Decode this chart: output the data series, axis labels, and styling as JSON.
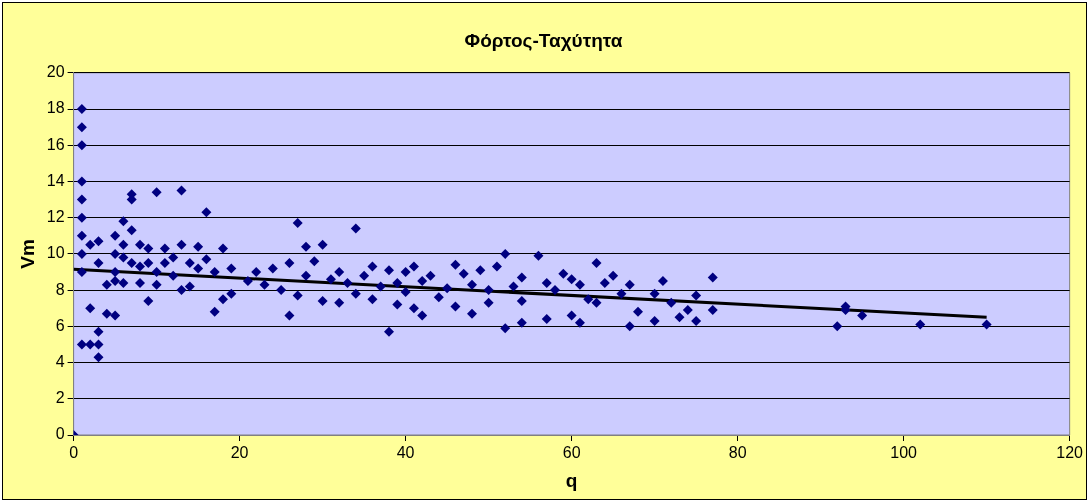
{
  "chart_data": {
    "type": "scatter",
    "title": "Φόρτος-Ταχύτητα",
    "xlabel": "q",
    "ylabel": "Vm",
    "xlim": [
      0,
      120
    ],
    "xticks": [
      0,
      20,
      40,
      60,
      80,
      100,
      120
    ],
    "ylim": [
      0,
      20
    ],
    "yticks": [
      0,
      2,
      4,
      6,
      8,
      10,
      12,
      14,
      16,
      18,
      20
    ],
    "grid": "y",
    "legend": false,
    "series": [
      {
        "type": "scatter",
        "color": "#000080",
        "marker": "diamond",
        "x": [
          0,
          1,
          1,
          1,
          1,
          1,
          1,
          1,
          1,
          1,
          1,
          2,
          2,
          2,
          3,
          3,
          3,
          3,
          3,
          4,
          4,
          5,
          5,
          5,
          5,
          5,
          6,
          6,
          6,
          6,
          7,
          7,
          7,
          7,
          8,
          8,
          8,
          9,
          9,
          9,
          10,
          10,
          10,
          11,
          11,
          12,
          12,
          13,
          13,
          13,
          14,
          14,
          15,
          15,
          16,
          16,
          17,
          17,
          18,
          18,
          19,
          19,
          21,
          22,
          23,
          24,
          25,
          26,
          26,
          27,
          27,
          28,
          28,
          29,
          30,
          30,
          31,
          32,
          32,
          33,
          34,
          34,
          35,
          36,
          36,
          37,
          38,
          38,
          39,
          39,
          40,
          40,
          41,
          41,
          42,
          42,
          43,
          44,
          45,
          46,
          46,
          47,
          48,
          48,
          49,
          50,
          50,
          51,
          52,
          52,
          53,
          54,
          54,
          54,
          56,
          57,
          57,
          58,
          59,
          60,
          60,
          61,
          61,
          62,
          63,
          63,
          64,
          65,
          66,
          67,
          67,
          68,
          70,
          70,
          71,
          72,
          73,
          74,
          75,
          75,
          77,
          77,
          92,
          93,
          93,
          95,
          102,
          110
        ],
        "values": [
          0,
          18,
          17,
          16,
          14,
          13,
          12,
          11,
          10,
          9,
          5,
          10.5,
          7,
          5,
          10.7,
          9.5,
          5.7,
          5,
          4.3,
          8.3,
          6.7,
          11,
          10,
          9,
          8.5,
          6.6,
          11.8,
          10.5,
          9.8,
          8.4,
          13.3,
          13,
          11.3,
          9.5,
          10.5,
          9.3,
          8.4,
          10.3,
          9.5,
          7.4,
          13.4,
          9,
          8.3,
          10.3,
          9.5,
          9.8,
          8.8,
          13.5,
          10.5,
          8,
          9.5,
          8.2,
          10.4,
          9.2,
          12.3,
          9.7,
          9,
          6.8,
          10.3,
          7.5,
          9.2,
          7.8,
          8.5,
          9,
          8.3,
          9.2,
          8,
          9.5,
          6.6,
          11.7,
          7.7,
          10.4,
          8.8,
          9.6,
          10.5,
          7.4,
          8.6,
          9,
          7.3,
          8.4,
          11.4,
          7.8,
          8.8,
          9.3,
          7.5,
          8.2,
          9.1,
          5.7,
          8.4,
          7.2,
          9,
          7.9,
          9.3,
          7,
          8.5,
          6.6,
          8.8,
          7.6,
          8.1,
          9.4,
          7.1,
          8.9,
          8.3,
          6.7,
          9.1,
          8,
          7.3,
          9.3,
          10,
          5.9,
          8.2,
          8.7,
          6.2,
          7.4,
          9.9,
          8.4,
          6.4,
          8,
          8.9,
          8.6,
          6.6,
          8.3,
          6.2,
          7.5,
          9.5,
          7.3,
          8.4,
          8.8,
          7.8,
          6,
          8.3,
          6.8,
          7.8,
          6.3,
          8.5,
          7.3,
          6.5,
          6.9,
          7.7,
          6.3,
          8.7,
          6.9,
          6,
          7.1,
          6.9,
          6.6,
          6.1,
          6.1
        ]
      },
      {
        "type": "line",
        "color": "#000000",
        "marker": "none",
        "x": [
          0,
          110
        ],
        "values": [
          9.15,
          6.5
        ]
      }
    ]
  }
}
